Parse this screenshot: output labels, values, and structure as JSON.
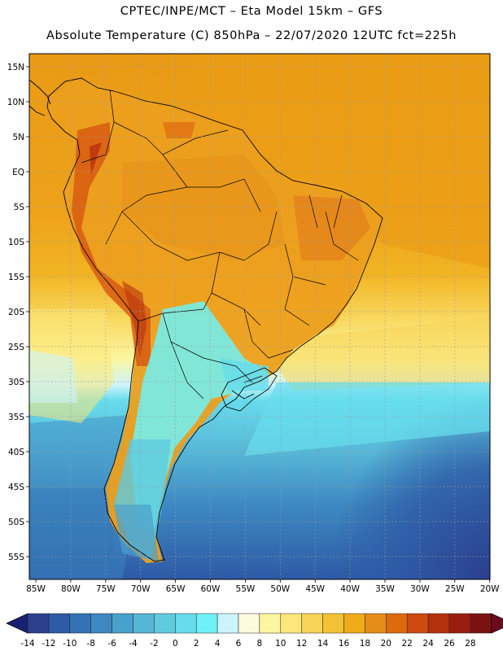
{
  "header": {
    "title_line1": "CPTEC/INPE/MCT –  Eta Model 15km – GFS",
    "title_line2": "Absolute Temperature (C) 850hPa – 22/07/2020 12UTC fct=225h"
  },
  "map": {
    "region": "South America",
    "lon_labels": [
      "85W",
      "80W",
      "75W",
      "70W",
      "65W",
      "60W",
      "55W",
      "50W",
      "45W",
      "40W",
      "35W",
      "30W",
      "25W",
      "20W"
    ],
    "lat_labels": [
      "15N",
      "10N",
      "5N",
      "EQ",
      "5S",
      "10S",
      "15S",
      "20S",
      "25S",
      "30S",
      "35S",
      "40S",
      "45S",
      "50S",
      "55S"
    ]
  },
  "colorbar": {
    "labels": [
      "-14",
      "-12",
      "-10",
      "-8",
      "-6",
      "-4",
      "-2",
      "0",
      "2",
      "4",
      "6",
      "8",
      "10",
      "12",
      "14",
      "16",
      "18",
      "20",
      "22",
      "24",
      "26",
      "28"
    ],
    "colors": [
      "#2b3f8e",
      "#2e5aa6",
      "#3472b4",
      "#3d88c2",
      "#4aa0cc",
      "#56b6d6",
      "#5ecbe0",
      "#67dcec",
      "#6ff2f6",
      "#cdf4fa",
      "#fefae0",
      "#fdf6a0",
      "#fbe77a",
      "#f7d558",
      "#f3c234",
      "#eeab1a",
      "#e68c18",
      "#de6a0e",
      "#cd4a10",
      "#b5310e",
      "#9a1e10",
      "#7b1212"
    ],
    "left_arrow_color": "#1a2070",
    "right_arrow_color": "#6e0a1e"
  }
}
